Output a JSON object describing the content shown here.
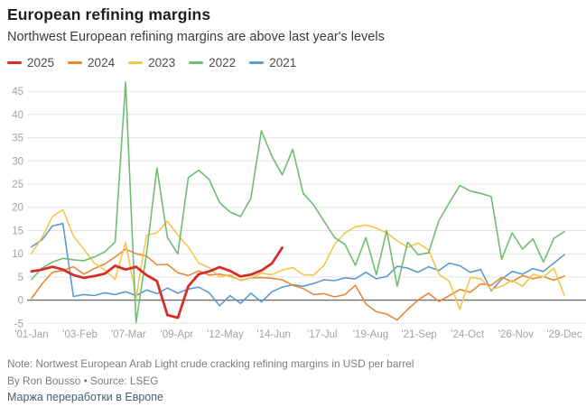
{
  "header": {
    "title": "European refining margins",
    "subtitle": "Northwest European refining margins are above last year's levels"
  },
  "chart_data": {
    "type": "line",
    "title": "European refining margins",
    "xlabel": "",
    "ylabel": "",
    "x_unit": "weekly",
    "x_ticks": [
      "'01-Jan",
      "'03-Feb",
      "'07-Mar",
      "'09-Apr",
      "'12-May",
      "'14-Jun",
      "'17-Jul",
      "'19-Aug",
      "'21-Sep",
      "'24-Oct",
      "'26-Nov",
      "'29-Dec"
    ],
    "n_points": 52,
    "ylim": [
      -5,
      47.5
    ],
    "yticks": [
      -5,
      0,
      5,
      10,
      15,
      20,
      25,
      30,
      35,
      40,
      45
    ],
    "grid": "horizontal-only",
    "zero_line": true,
    "legend_position": "top-left",
    "draw_order": [
      "2021",
      "2024",
      "2023",
      "2022",
      "2025"
    ],
    "series": [
      {
        "name": "2025",
        "color": "#d42e27",
        "width": 2.8,
        "values": [
          6.2,
          6.6,
          7.2,
          6.6,
          5.4,
          4.8,
          5.2,
          5.7,
          7.4,
          6.6,
          7.2,
          5.4,
          4.1,
          -3.2,
          -3.8,
          3.0,
          5.6,
          6.2,
          7.1,
          6.3,
          5.1,
          5.5,
          6.4,
          7.9,
          11.3
        ]
      },
      {
        "name": "2024",
        "color": "#e6883c",
        "width": 1.6,
        "values": [
          0.4,
          3.5,
          6.0,
          6.4,
          7.2,
          5.6,
          6.8,
          7.8,
          9.3,
          11.0,
          10.0,
          9.5,
          7.6,
          7.7,
          5.9,
          5.3,
          6.3,
          5.4,
          5.6,
          5.2,
          4.3,
          4.8,
          4.9,
          4.7,
          4.4,
          3.2,
          2.5,
          1.2,
          1.4,
          0.7,
          1.2,
          3.2,
          -0.8,
          -2.5,
          -3.0,
          -4.3,
          -2.0,
          0.0,
          1.5,
          -0.3,
          1.0,
          2.3,
          1.7,
          3.5,
          3.2,
          4.9,
          4.0,
          5.3,
          4.6,
          5.1,
          4.3,
          5.2
        ]
      },
      {
        "name": "2023",
        "color": "#f6c54b",
        "width": 1.6,
        "values": [
          10.1,
          13.5,
          18.0,
          19.5,
          13.8,
          11.0,
          8.0,
          6.5,
          4.5,
          12.5,
          0.5,
          14.0,
          14.5,
          17.0,
          14.0,
          11.5,
          8.0,
          7.0,
          5.0,
          5.5,
          4.2,
          4.8,
          5.8,
          5.5,
          6.5,
          7.0,
          5.5,
          5.4,
          7.5,
          12.0,
          14.5,
          15.8,
          16.2,
          15.5,
          14.5,
          12.8,
          11.4,
          12.3,
          10.8,
          5.6,
          4.0,
          -2.0,
          4.9,
          4.6,
          2.3,
          3.0,
          4.3,
          3.0,
          5.6,
          5.0,
          6.9,
          1.0
        ]
      },
      {
        "name": "2022",
        "color": "#70bd72",
        "width": 1.6,
        "values": [
          4.5,
          6.9,
          8.2,
          9.0,
          8.7,
          8.5,
          9.3,
          10.4,
          12.5,
          47.0,
          -4.8,
          10.0,
          28.5,
          13.5,
          10.0,
          26.4,
          28.0,
          26.0,
          21.0,
          19.0,
          18.0,
          22.0,
          36.5,
          31.0,
          27.0,
          32.5,
          23.0,
          20.5,
          17.0,
          13.5,
          12.0,
          7.5,
          13.5,
          5.5,
          15.0,
          3.0,
          12.5,
          9.8,
          10.2,
          17.2,
          21.0,
          24.7,
          23.5,
          23.0,
          22.3,
          8.8,
          14.5,
          11.0,
          13.2,
          8.2,
          13.3,
          14.8
        ]
      },
      {
        "name": "2021",
        "color": "#5a9bd1",
        "width": 1.6,
        "values": [
          11.5,
          13.0,
          16.0,
          16.5,
          0.8,
          1.2,
          1.0,
          1.6,
          1.2,
          1.8,
          1.0,
          2.2,
          1.4,
          2.6,
          1.5,
          2.4,
          2.8,
          1.6,
          -1.2,
          1.0,
          -0.7,
          1.5,
          -0.4,
          1.8,
          2.8,
          3.3,
          3.0,
          3.6,
          4.4,
          4.2,
          4.8,
          4.6,
          6.0,
          4.6,
          5.1,
          7.3,
          6.9,
          6.0,
          7.2,
          6.4,
          8.0,
          7.4,
          6.0,
          6.6,
          2.0,
          4.5,
          6.2,
          5.6,
          6.8,
          6.2,
          8.0,
          9.8
        ]
      }
    ],
    "colors": {
      "grid": "#e4e4e4",
      "zero_line": "#6e6e6e",
      "tick_text": "#a2a2a2"
    }
  },
  "footer": {
    "note": "Note: Nortwest European Arab Light crude cracking refining margins in USD per barrel",
    "byline": "By Ron Bousso • Source: LSEG",
    "caption_ru": "Маржа переработки в Европе"
  }
}
